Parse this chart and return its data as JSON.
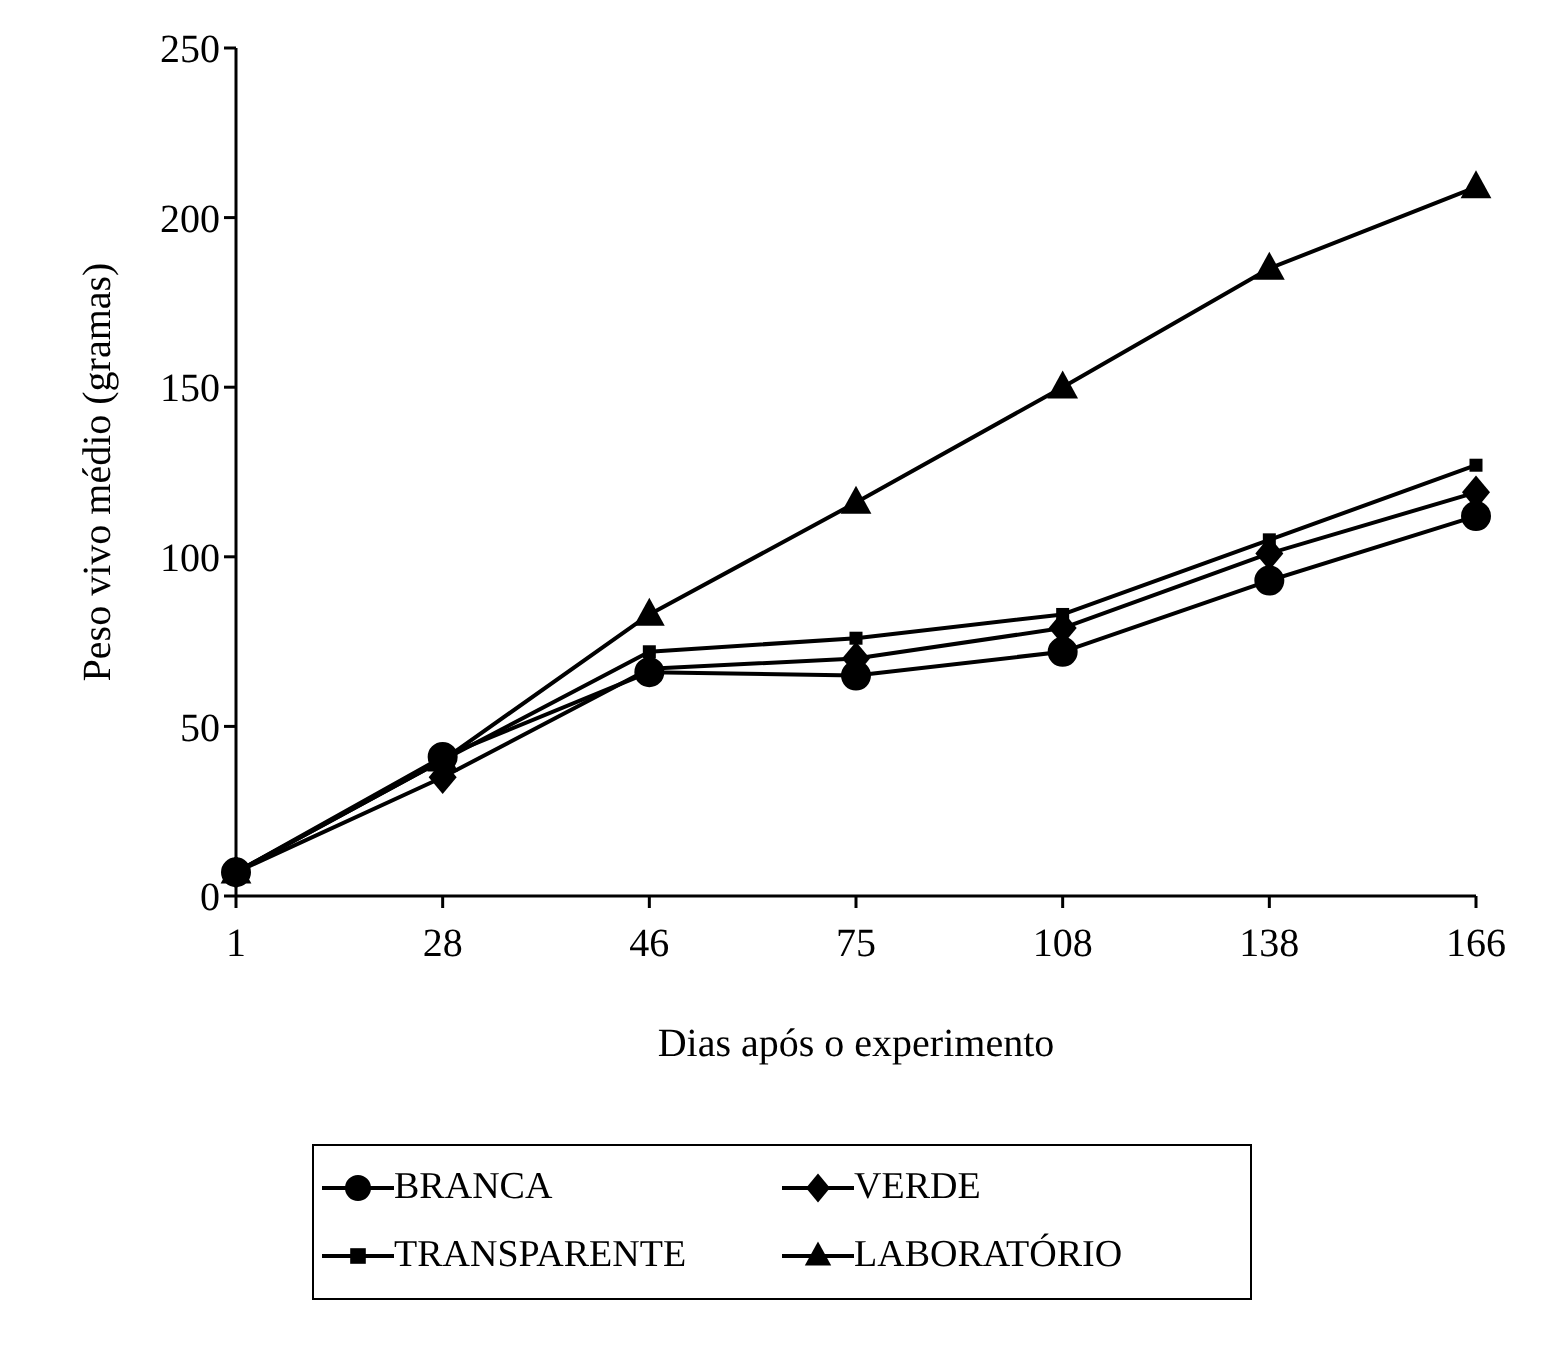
{
  "chart_data": {
    "type": "line",
    "xlabel": "Dias após o experimento",
    "ylabel": "Peso vivo médio (gramas)",
    "categories": [
      "1",
      "28",
      "46",
      "75",
      "108",
      "138",
      "166"
    ],
    "series": [
      {
        "name": "BRANCA",
        "color": "#000000",
        "marker": "circle",
        "values": [
          7,
          41,
          66,
          65,
          72,
          93,
          112
        ]
      },
      {
        "name": "VERDE",
        "color": "#000000",
        "marker": "diamond",
        "values": [
          7,
          35,
          67,
          70,
          79,
          101,
          119
        ]
      },
      {
        "name": "TRANSPARENTE",
        "color": "#000000",
        "marker": "square",
        "values": [
          7,
          40,
          72,
          76,
          83,
          105,
          127
        ]
      },
      {
        "name": "LABORATÓRIO",
        "color": "#000000",
        "marker": "triangle",
        "values": [
          7,
          40,
          83,
          116,
          150,
          185,
          209
        ]
      }
    ],
    "ylim": [
      0,
      250
    ],
    "yticks": [
      0,
      50,
      100,
      150,
      200,
      250
    ],
    "grid": false,
    "legend": "bottom",
    "line_style": "solid"
  }
}
